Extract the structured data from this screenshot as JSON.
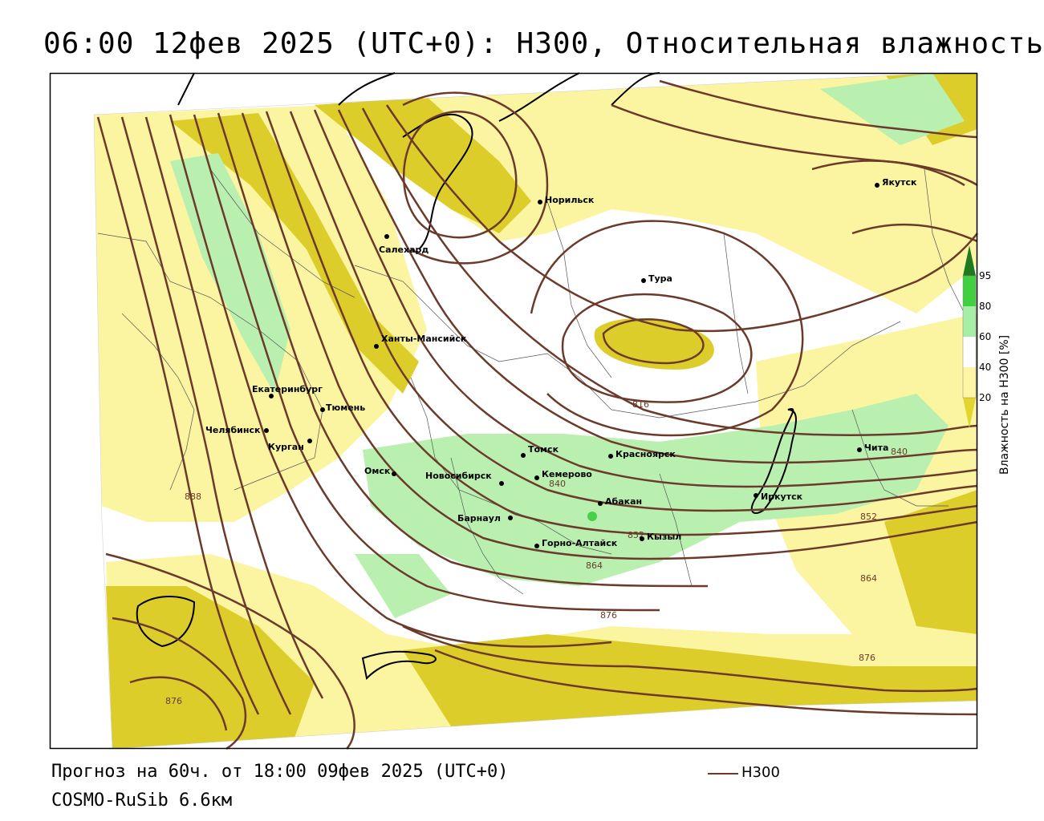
{
  "title": "06:00 12фев 2025 (UTC+0): H300, Относительная влажность",
  "forecast_text": "Прогноз на 60ч. от 18:00 09фев 2025 (UTC+0)",
  "model_text": "COSMO-RuSib 6.6км",
  "legend": {
    "line_label": "H300",
    "line_color": "#6b3a2a"
  },
  "colorbar": {
    "title": "Влажность на H300 [%]",
    "ticks": [
      "95",
      "80",
      "60",
      "40",
      "20"
    ],
    "colors": [
      "#1e7a1e",
      "#3fcf3f",
      "#a6eea6",
      "#ffffff",
      "#fff5a5",
      "#e3d52e"
    ]
  },
  "colors": {
    "yellow_dark": "#dccd2a",
    "yellow_light": "#fbf4a0",
    "green_light": "#b9f0b0",
    "green_mid": "#48d048",
    "contour": "#6b3a2a"
  },
  "cities": [
    {
      "name": "Норильск"
    },
    {
      "name": "Якутск"
    },
    {
      "name": "Салехард"
    },
    {
      "name": "Тура"
    },
    {
      "name": "Ханты-Мансийск"
    },
    {
      "name": "Екатеринбург"
    },
    {
      "name": "Тюмень"
    },
    {
      "name": "Челябинск"
    },
    {
      "name": "Курган"
    },
    {
      "name": "Омск"
    },
    {
      "name": "Томск"
    },
    {
      "name": "Красноярск"
    },
    {
      "name": "Новосибирск"
    },
    {
      "name": "Кемерово"
    },
    {
      "name": "Абакан"
    },
    {
      "name": "Барнаул"
    },
    {
      "name": "Горно-Алтайск"
    },
    {
      "name": "Кызыл"
    },
    {
      "name": "Иркутск"
    },
    {
      "name": "Чита"
    }
  ],
  "contour_labels": [
    "816",
    "840",
    "852",
    "864",
    "876",
    "888",
    "852",
    "864",
    "876",
    "876",
    "840"
  ]
}
